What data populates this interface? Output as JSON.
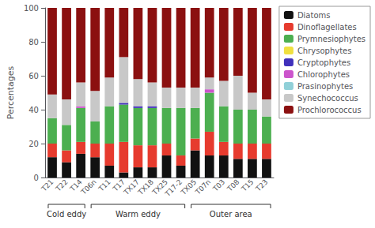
{
  "chart_data": {
    "type": "bar",
    "stacked": true,
    "grid": false,
    "legend": "right",
    "ylabel": "Percentages",
    "categories": [
      "T21",
      "T22",
      "T14",
      "T06n",
      "T11",
      "T17",
      "TX17",
      "TX18",
      "TX25",
      "T17-2",
      "TX05",
      "T07n",
      "T03",
      "T08",
      "T15",
      "T23"
    ],
    "series": [
      {
        "name": "Diatoms",
        "color": "#111111",
        "values": [
          12,
          9,
          14,
          12,
          7,
          3,
          6,
          6,
          13,
          7,
          16,
          13,
          13,
          11,
          11,
          11
        ]
      },
      {
        "name": "Dinoflagellates",
        "color": "#e63b2e",
        "values": [
          8,
          7,
          7,
          8,
          13,
          18,
          13,
          13,
          7,
          6,
          7,
          14,
          8,
          9,
          9,
          9
        ]
      },
      {
        "name": "Prymnesiophytes",
        "color": "#4caf50",
        "values": [
          15,
          15,
          20,
          13,
          22,
          22,
          22,
          22,
          21,
          28,
          18,
          23,
          21,
          20,
          20,
          16
        ]
      },
      {
        "name": "Chrysophytes",
        "color": "#f0e040",
        "values": [
          0,
          0,
          0,
          0,
          0,
          0,
          0,
          0,
          0,
          0,
          0,
          0,
          0,
          0,
          0,
          0
        ]
      },
      {
        "name": "Cryptophytes",
        "color": "#4030bb",
        "values": [
          0,
          0,
          0,
          0,
          0,
          1,
          1,
          1,
          0,
          0,
          0,
          0,
          0,
          0,
          0,
          0
        ]
      },
      {
        "name": "Chlorophytes",
        "color": "#cc55cc",
        "values": [
          0,
          0,
          1,
          0,
          0,
          0,
          0,
          0,
          0,
          0,
          0,
          2,
          0,
          0,
          0,
          0
        ]
      },
      {
        "name": "Prasinophytes",
        "color": "#90d0d8",
        "values": [
          0,
          0,
          0,
          0,
          0,
          0,
          0,
          0,
          0,
          0,
          0,
          0,
          0,
          0,
          0,
          0
        ]
      },
      {
        "name": "Synechococcus",
        "color": "#c8c8c8",
        "values": [
          14,
          15,
          14,
          18,
          17,
          27,
          16,
          14,
          12,
          12,
          12,
          7,
          15,
          20,
          10,
          10
        ]
      },
      {
        "name": "Prochlorococcus",
        "color": "#8b1010",
        "values": [
          51,
          54,
          44,
          49,
          41,
          29,
          42,
          44,
          47,
          47,
          47,
          41,
          43,
          40,
          50,
          54
        ]
      }
    ],
    "ylim": [
      0,
      100
    ],
    "yticks": [
      0,
      20,
      40,
      60,
      80,
      100
    ],
    "annotations": [
      {
        "text": "Cold eddy",
        "from": "T21",
        "to": "T14"
      },
      {
        "text": "Warm eddy",
        "from": "T06n",
        "to": "T17-2"
      },
      {
        "text": "Outer area",
        "from": "TX05",
        "to": "T23"
      }
    ]
  }
}
